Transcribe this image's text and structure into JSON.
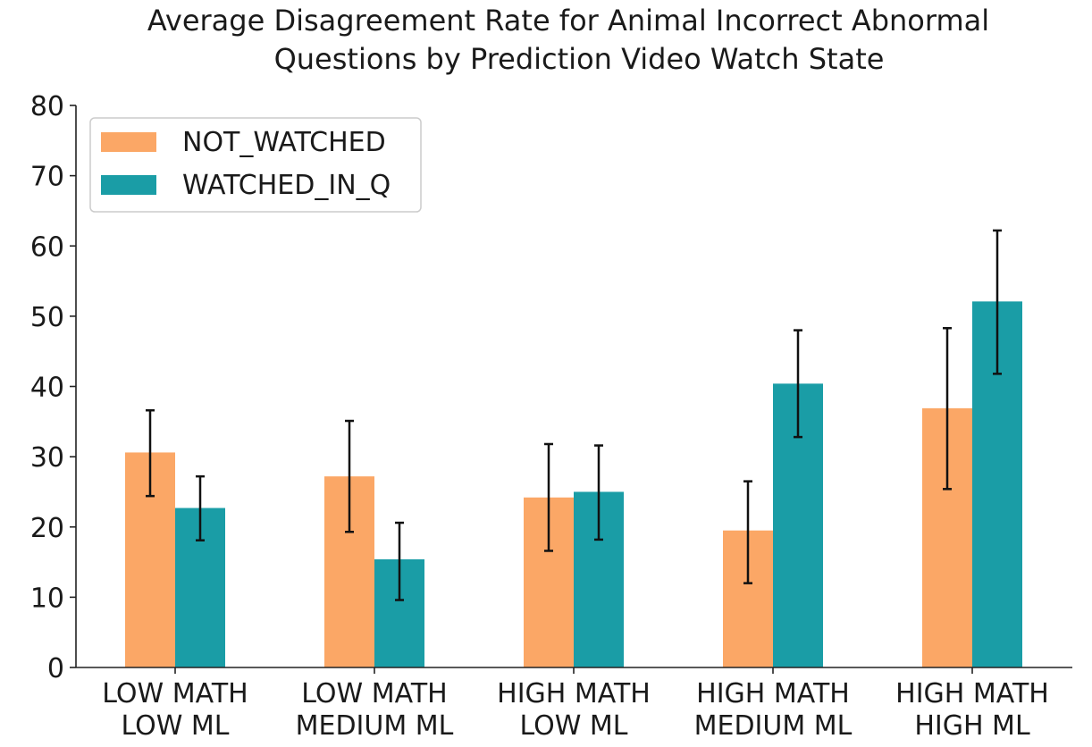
{
  "chart_data": {
    "type": "bar",
    "title": [
      "Average Disagreement Rate for Animal Incorrect Abnormal",
      "Questions by Prediction Video Watch State"
    ],
    "xlabel": "",
    "ylabel": "",
    "ylim": [
      0,
      80
    ],
    "yticks": [
      "0",
      "10",
      "20",
      "30",
      "40",
      "50",
      "60",
      "70",
      "80"
    ],
    "categories": [
      [
        "LOW MATH",
        "LOW ML"
      ],
      [
        "LOW MATH",
        "MEDIUM ML"
      ],
      [
        "HIGH MATH",
        "LOW ML"
      ],
      [
        "HIGH MATH",
        "MEDIUM  ML"
      ],
      [
        "HIGH MATH",
        "HIGH ML"
      ]
    ],
    "series": [
      {
        "name": "NOT_WATCHED",
        "color": "#fba766",
        "values": [
          30.6,
          27.2,
          24.2,
          19.5,
          36.9
        ],
        "err_low": [
          24.4,
          19.3,
          16.6,
          12.0,
          25.4
        ],
        "err_high": [
          36.6,
          35.1,
          31.8,
          26.5,
          48.3
        ]
      },
      {
        "name": "WATCHED_IN_Q",
        "color": "#1a9da6",
        "values": [
          22.7,
          15.4,
          25.0,
          40.4,
          52.1
        ],
        "err_low": [
          18.1,
          9.6,
          18.2,
          32.8,
          41.8
        ],
        "err_high": [
          27.2,
          20.6,
          31.6,
          48.0,
          62.2
        ]
      }
    ],
    "legend_position": "top-left"
  }
}
